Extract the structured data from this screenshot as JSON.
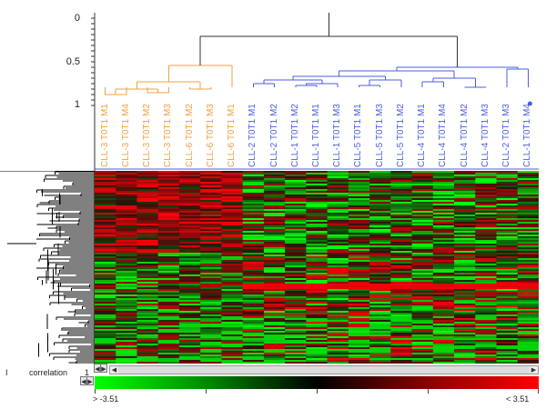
{
  "dendrogram_axis": {
    "ticks": [
      "0",
      "0.5",
      "1"
    ]
  },
  "columns": [
    {
      "label": "CLL-3 T0T1 M1",
      "group": "orange"
    },
    {
      "label": "CLL-3 T0T1 M4",
      "group": "orange"
    },
    {
      "label": "CLL-3 T0T1 M2",
      "group": "orange"
    },
    {
      "label": "CLL-3 T0T1 M3",
      "group": "orange"
    },
    {
      "label": "CLL-6 T0T1 M2",
      "group": "orange"
    },
    {
      "label": "CLL-6 T0T1 M3",
      "group": "orange"
    },
    {
      "label": "CLL-6 T0T1 M1",
      "group": "orange"
    },
    {
      "label": "CLL-2 T0T1 M1",
      "group": "blue"
    },
    {
      "label": "CLL-2 T0T1 M2",
      "group": "blue"
    },
    {
      "label": "CLL-1 T0T1 M2",
      "group": "blue"
    },
    {
      "label": "CLL-1 T0T1 M1",
      "group": "blue"
    },
    {
      "label": "CLL-1 T0T1 M3",
      "group": "blue"
    },
    {
      "label": "CLL-5 T0T1 M1",
      "group": "blue"
    },
    {
      "label": "CLL-5 T0T1 M3",
      "group": "blue"
    },
    {
      "label": "CLL-5 T0T1 M2",
      "group": "blue"
    },
    {
      "label": "CLL-4 T0T1 M1",
      "group": "blue"
    },
    {
      "label": "CLL-4 T0T1 M4",
      "group": "blue"
    },
    {
      "label": "CLL-4 T0T1 M2",
      "group": "blue"
    },
    {
      "label": "CLL-4 T0T1 M3",
      "group": "blue"
    },
    {
      "label": "CLL-2 T0T1 M3",
      "group": "blue"
    },
    {
      "label": "CLL-1 T0T1 M4",
      "group": "blue"
    }
  ],
  "colors": {
    "orange_cluster": "#f0a040",
    "blue_cluster": "#4a5ee0",
    "root_branch": "#333333",
    "low": "#00ff00",
    "mid": "#000000",
    "high": "#ff0000"
  },
  "correlation": {
    "label": "correlation",
    "start": "I",
    "end": "1"
  },
  "legend": {
    "min_label": "> -3.51",
    "max_label": "< 3.51"
  },
  "controls": {
    "zoom_buttons": [
      "◀",
      "▶",
      "◀",
      "▶"
    ],
    "scroll_left": "◀",
    "scroll_right": "▶"
  }
}
